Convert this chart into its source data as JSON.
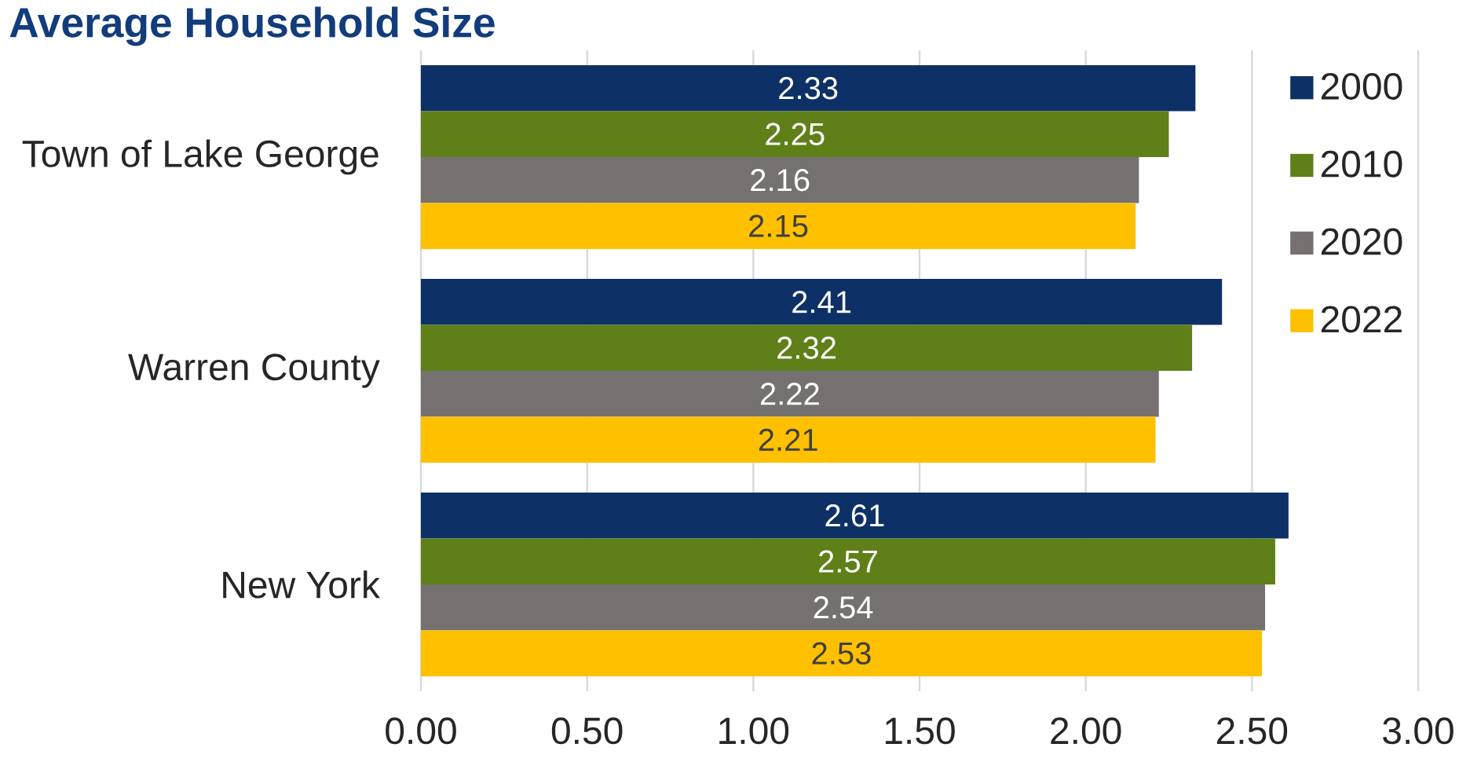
{
  "chart_data": {
    "type": "bar",
    "orientation": "horizontal",
    "title": "Average Household Size",
    "categories": [
      "Town of Lake George",
      "Warren County",
      "New York"
    ],
    "series": [
      {
        "name": "2000",
        "color": "#0d3166",
        "values": [
          2.33,
          2.41,
          2.61
        ]
      },
      {
        "name": "2010",
        "color": "#5f7f18",
        "values": [
          2.25,
          2.32,
          2.57
        ]
      },
      {
        "name": "2020",
        "color": "#767171",
        "values": [
          2.16,
          2.22,
          2.54
        ]
      },
      {
        "name": "2022",
        "color": "#ffc000",
        "values": [
          2.15,
          2.21,
          2.53
        ]
      }
    ],
    "xlim": [
      0,
      3
    ],
    "xticks": [
      {
        "value": 0,
        "label": "0.00"
      },
      {
        "value": 0.5,
        "label": "0.50"
      },
      {
        "value": 1,
        "label": "1.00"
      },
      {
        "value": 1.5,
        "label": "1.50"
      },
      {
        "value": 2,
        "label": "2.00"
      },
      {
        "value": 2.5,
        "label": "2.50"
      },
      {
        "value": 3,
        "label": "3.00"
      }
    ],
    "grid": "x",
    "legend": "top right",
    "data_labels": true
  }
}
